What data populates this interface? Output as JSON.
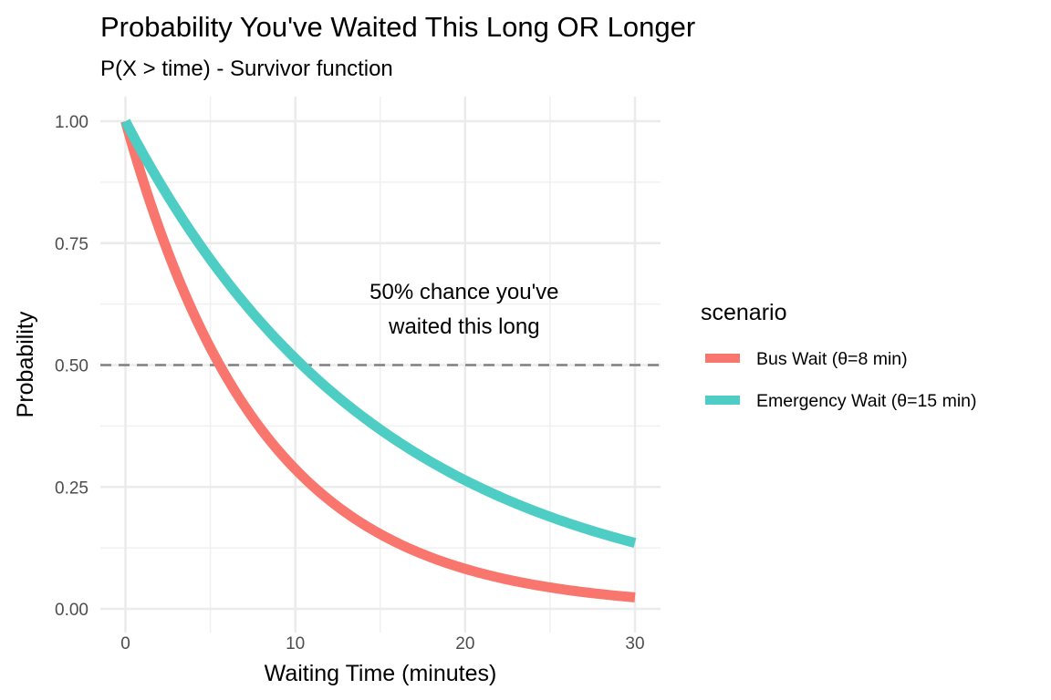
{
  "chart_data": {
    "type": "line",
    "title": "Probability You've Waited This Long OR Longer",
    "subtitle": "P(X > time) - Survivor function",
    "xlabel": "Waiting Time (minutes)",
    "ylabel": "Probability",
    "xlim": [
      0,
      30
    ],
    "ylim": [
      0,
      1
    ],
    "x_ticks": [
      0,
      10,
      20,
      30
    ],
    "x_tick_labels": [
      "0",
      "10",
      "20",
      "30"
    ],
    "x_minor_ticks": [
      5,
      15,
      25
    ],
    "y_ticks": [
      0,
      0.25,
      0.5,
      0.75,
      1.0
    ],
    "y_tick_labels": [
      "0.00",
      "0.25",
      "0.50",
      "0.75",
      "1.00"
    ],
    "y_minor_ticks": [
      0.125,
      0.375,
      0.625,
      0.875
    ],
    "grid": true,
    "legend": {
      "title": "scenario",
      "position": "right"
    },
    "series": [
      {
        "name": "Bus Wait (θ=8 min)",
        "color": "#F8766D",
        "function": "exp(-x/8)",
        "x": [
          0,
          2,
          4,
          6,
          8,
          10,
          12,
          14,
          16,
          18,
          20,
          22,
          24,
          26,
          28,
          30
        ],
        "values": [
          1.0,
          0.779,
          0.607,
          0.472,
          0.368,
          0.287,
          0.223,
          0.174,
          0.135,
          0.105,
          0.082,
          0.064,
          0.05,
          0.039,
          0.03,
          0.024
        ]
      },
      {
        "name": "Emergency Wait (θ=15 min)",
        "color": "#4ECDC4",
        "function": "exp(-x/15)",
        "x": [
          0,
          2,
          4,
          6,
          8,
          10,
          12,
          14,
          16,
          18,
          20,
          22,
          24,
          26,
          28,
          30
        ],
        "values": [
          1.0,
          0.875,
          0.766,
          0.67,
          0.587,
          0.513,
          0.449,
          0.393,
          0.344,
          0.301,
          0.264,
          0.231,
          0.202,
          0.177,
          0.155,
          0.135
        ]
      }
    ],
    "reference_line": {
      "y": 0.5,
      "style": "dashed",
      "color": "#808080"
    },
    "annotation": {
      "lines": [
        "50% chance you've",
        "waited this long"
      ],
      "x": 20,
      "y": 0.6
    }
  }
}
